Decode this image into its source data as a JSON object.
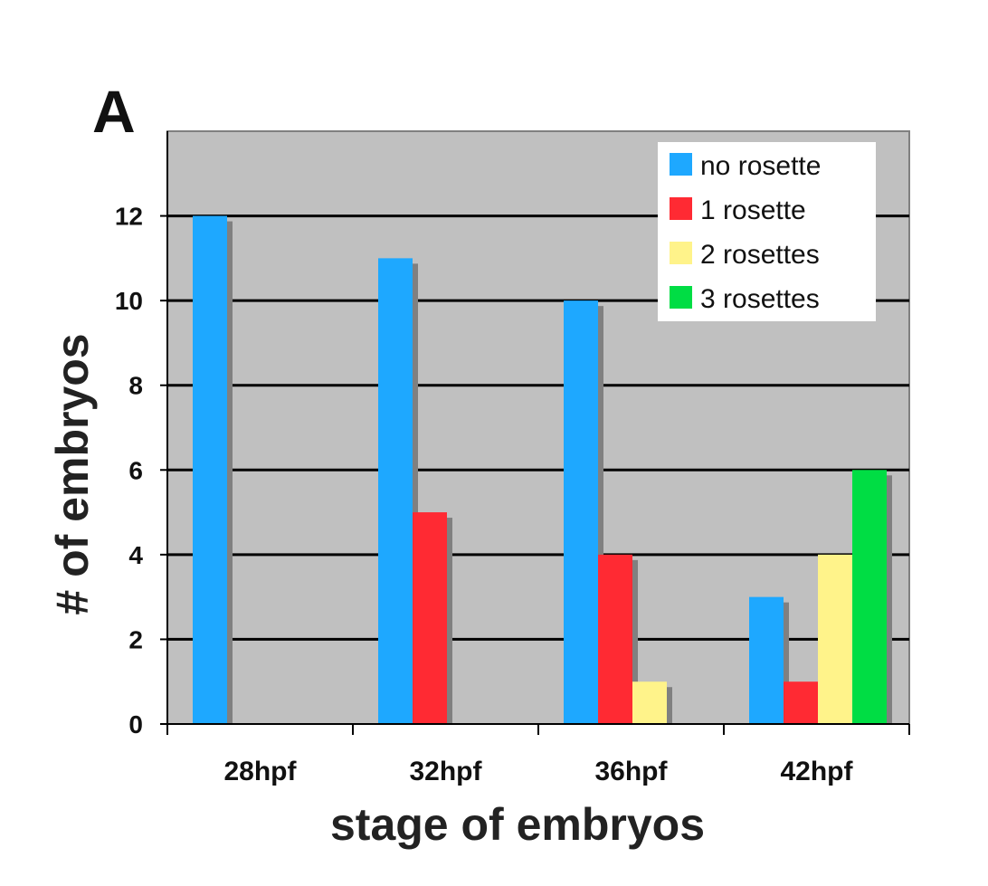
{
  "panel_label": "A",
  "chart_data": {
    "type": "bar",
    "categories": [
      "28hpf",
      "32hpf",
      "36hpf",
      "42hpf"
    ],
    "series": [
      {
        "name": "no rosette",
        "color": "#1ea8ff",
        "values": [
          12,
          11,
          10,
          3
        ]
      },
      {
        "name": "1 rosette",
        "color": "#ff2a33",
        "values": [
          0,
          5,
          4,
          1
        ]
      },
      {
        "name": "2 rosettes",
        "color": "#fff38a",
        "values": [
          0,
          0,
          1,
          4
        ]
      },
      {
        "name": "3 rosettes",
        "color": "#00dd44",
        "values": [
          0,
          0,
          0,
          6
        ]
      }
    ],
    "xlabel": "stage of embryos",
    "ylabel": "# of embryos",
    "ylim": [
      0,
      14
    ],
    "yticks": [
      "0",
      "2",
      "4",
      "6",
      "8",
      "10",
      "12"
    ],
    "grid": true,
    "legend_position": "top-right",
    "plot_background": "#c0c0c0",
    "bar_shadow": "#808080"
  }
}
